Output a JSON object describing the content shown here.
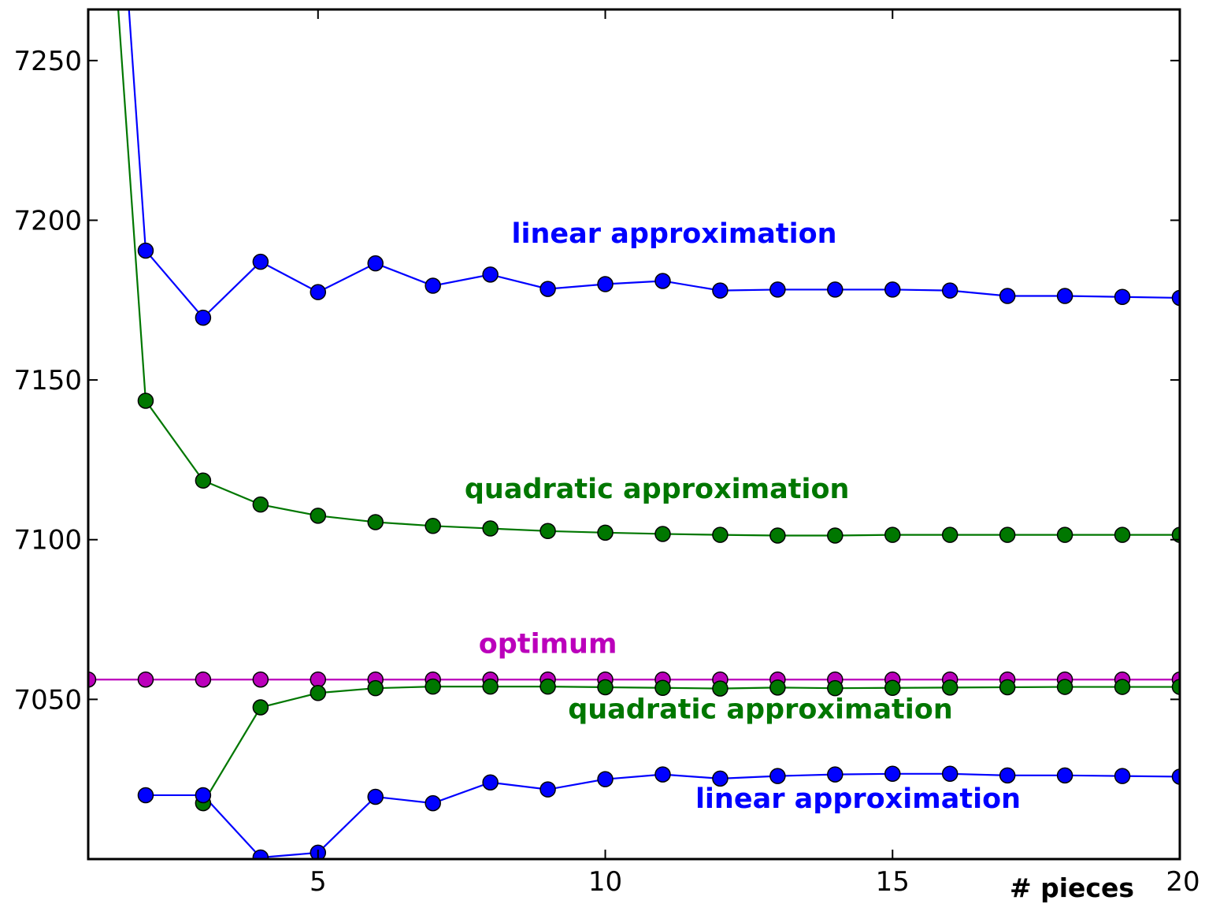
{
  "chart_data": {
    "type": "line",
    "xlabel": "# pieces",
    "ylabel": "",
    "title": "",
    "xlim": [
      1,
      20
    ],
    "ylim": [
      7000,
      7266
    ],
    "xticks": [
      5,
      10,
      15,
      20
    ],
    "yticks": [
      7050,
      7100,
      7150,
      7200,
      7250
    ],
    "grid": false,
    "colors": {
      "blue": "#0000ff",
      "green": "#007700",
      "magenta": "#bb00bb"
    },
    "series": [
      {
        "color": "blue",
        "x": [
          1,
          2,
          3,
          4,
          5,
          6,
          7,
          8,
          9,
          10,
          11,
          12,
          13,
          14,
          15,
          16,
          17,
          18,
          19,
          20
        ],
        "values": [
          7450,
          7190.5,
          7169.5,
          7187,
          7177.5,
          7186.5,
          7179.5,
          7183,
          7178.5,
          7180,
          7181,
          7178,
          7178.3,
          7178.3,
          7178.3,
          7178,
          7176.3,
          7176.3,
          7176,
          7175.7
        ]
      },
      {
        "color": "green",
        "x": [
          1,
          2,
          3,
          4,
          5,
          6,
          7,
          8,
          9,
          10,
          11,
          12,
          13,
          14,
          15,
          16,
          17,
          18,
          19,
          20
        ],
        "values": [
          7400,
          7143.5,
          7118.5,
          7111,
          7107.5,
          7105.5,
          7104.3,
          7103.5,
          7102.7,
          7102.2,
          7101.8,
          7101.5,
          7101.3,
          7101.3,
          7101.5,
          7101.5,
          7101.5,
          7101.5,
          7101.5,
          7101.5
        ]
      },
      {
        "color": "magenta",
        "x": [
          1,
          2,
          3,
          4,
          5,
          6,
          7,
          8,
          9,
          10,
          11,
          12,
          13,
          14,
          15,
          16,
          17,
          18,
          19,
          20
        ],
        "values": [
          7056.2,
          7056.2,
          7056.2,
          7056.2,
          7056.2,
          7056.2,
          7056.2,
          7056.2,
          7056.2,
          7056.2,
          7056.2,
          7056.2,
          7056.2,
          7056.2,
          7056.2,
          7056.2,
          7056.2,
          7056.2,
          7056.2,
          7056.2
        ]
      },
      {
        "color": "green",
        "x": [
          3,
          4,
          5,
          6,
          7,
          8,
          9,
          10,
          11,
          12,
          13,
          14,
          15,
          16,
          17,
          18,
          19,
          20
        ],
        "values": [
          7017.5,
          7047.5,
          7052,
          7053.5,
          7054,
          7054,
          7054,
          7053.8,
          7053.6,
          7053.4,
          7053.7,
          7053.5,
          7053.6,
          7053.7,
          7053.8,
          7053.9,
          7053.9,
          7053.9
        ]
      },
      {
        "color": "blue",
        "x": [
          2,
          3,
          4,
          5,
          6,
          7,
          8,
          9,
          10,
          11,
          12,
          13,
          14,
          15,
          16,
          17,
          18,
          19,
          20
        ],
        "values": [
          7020,
          7020,
          7000.5,
          7002,
          7019.5,
          7017.5,
          7024,
          7021.8,
          7025,
          7026.5,
          7025.2,
          7026,
          7026.5,
          7026.7,
          7026.7,
          7026.2,
          7026.2,
          7026,
          7025.8
        ]
      }
    ],
    "annotations": [
      {
        "text": "linear approximation",
        "color": "blue",
        "x": 11.2,
        "y": 7193
      },
      {
        "text": "quadratic approximation",
        "color": "green",
        "x": 10.9,
        "y": 7113
      },
      {
        "text": "optimum",
        "color": "magenta",
        "x": 9.0,
        "y": 7064.5
      },
      {
        "text": "quadratic approximation",
        "color": "green",
        "x": 12.7,
        "y": 7044
      },
      {
        "text": "linear approximation",
        "color": "blue",
        "x": 14.4,
        "y": 7016
      }
    ]
  }
}
